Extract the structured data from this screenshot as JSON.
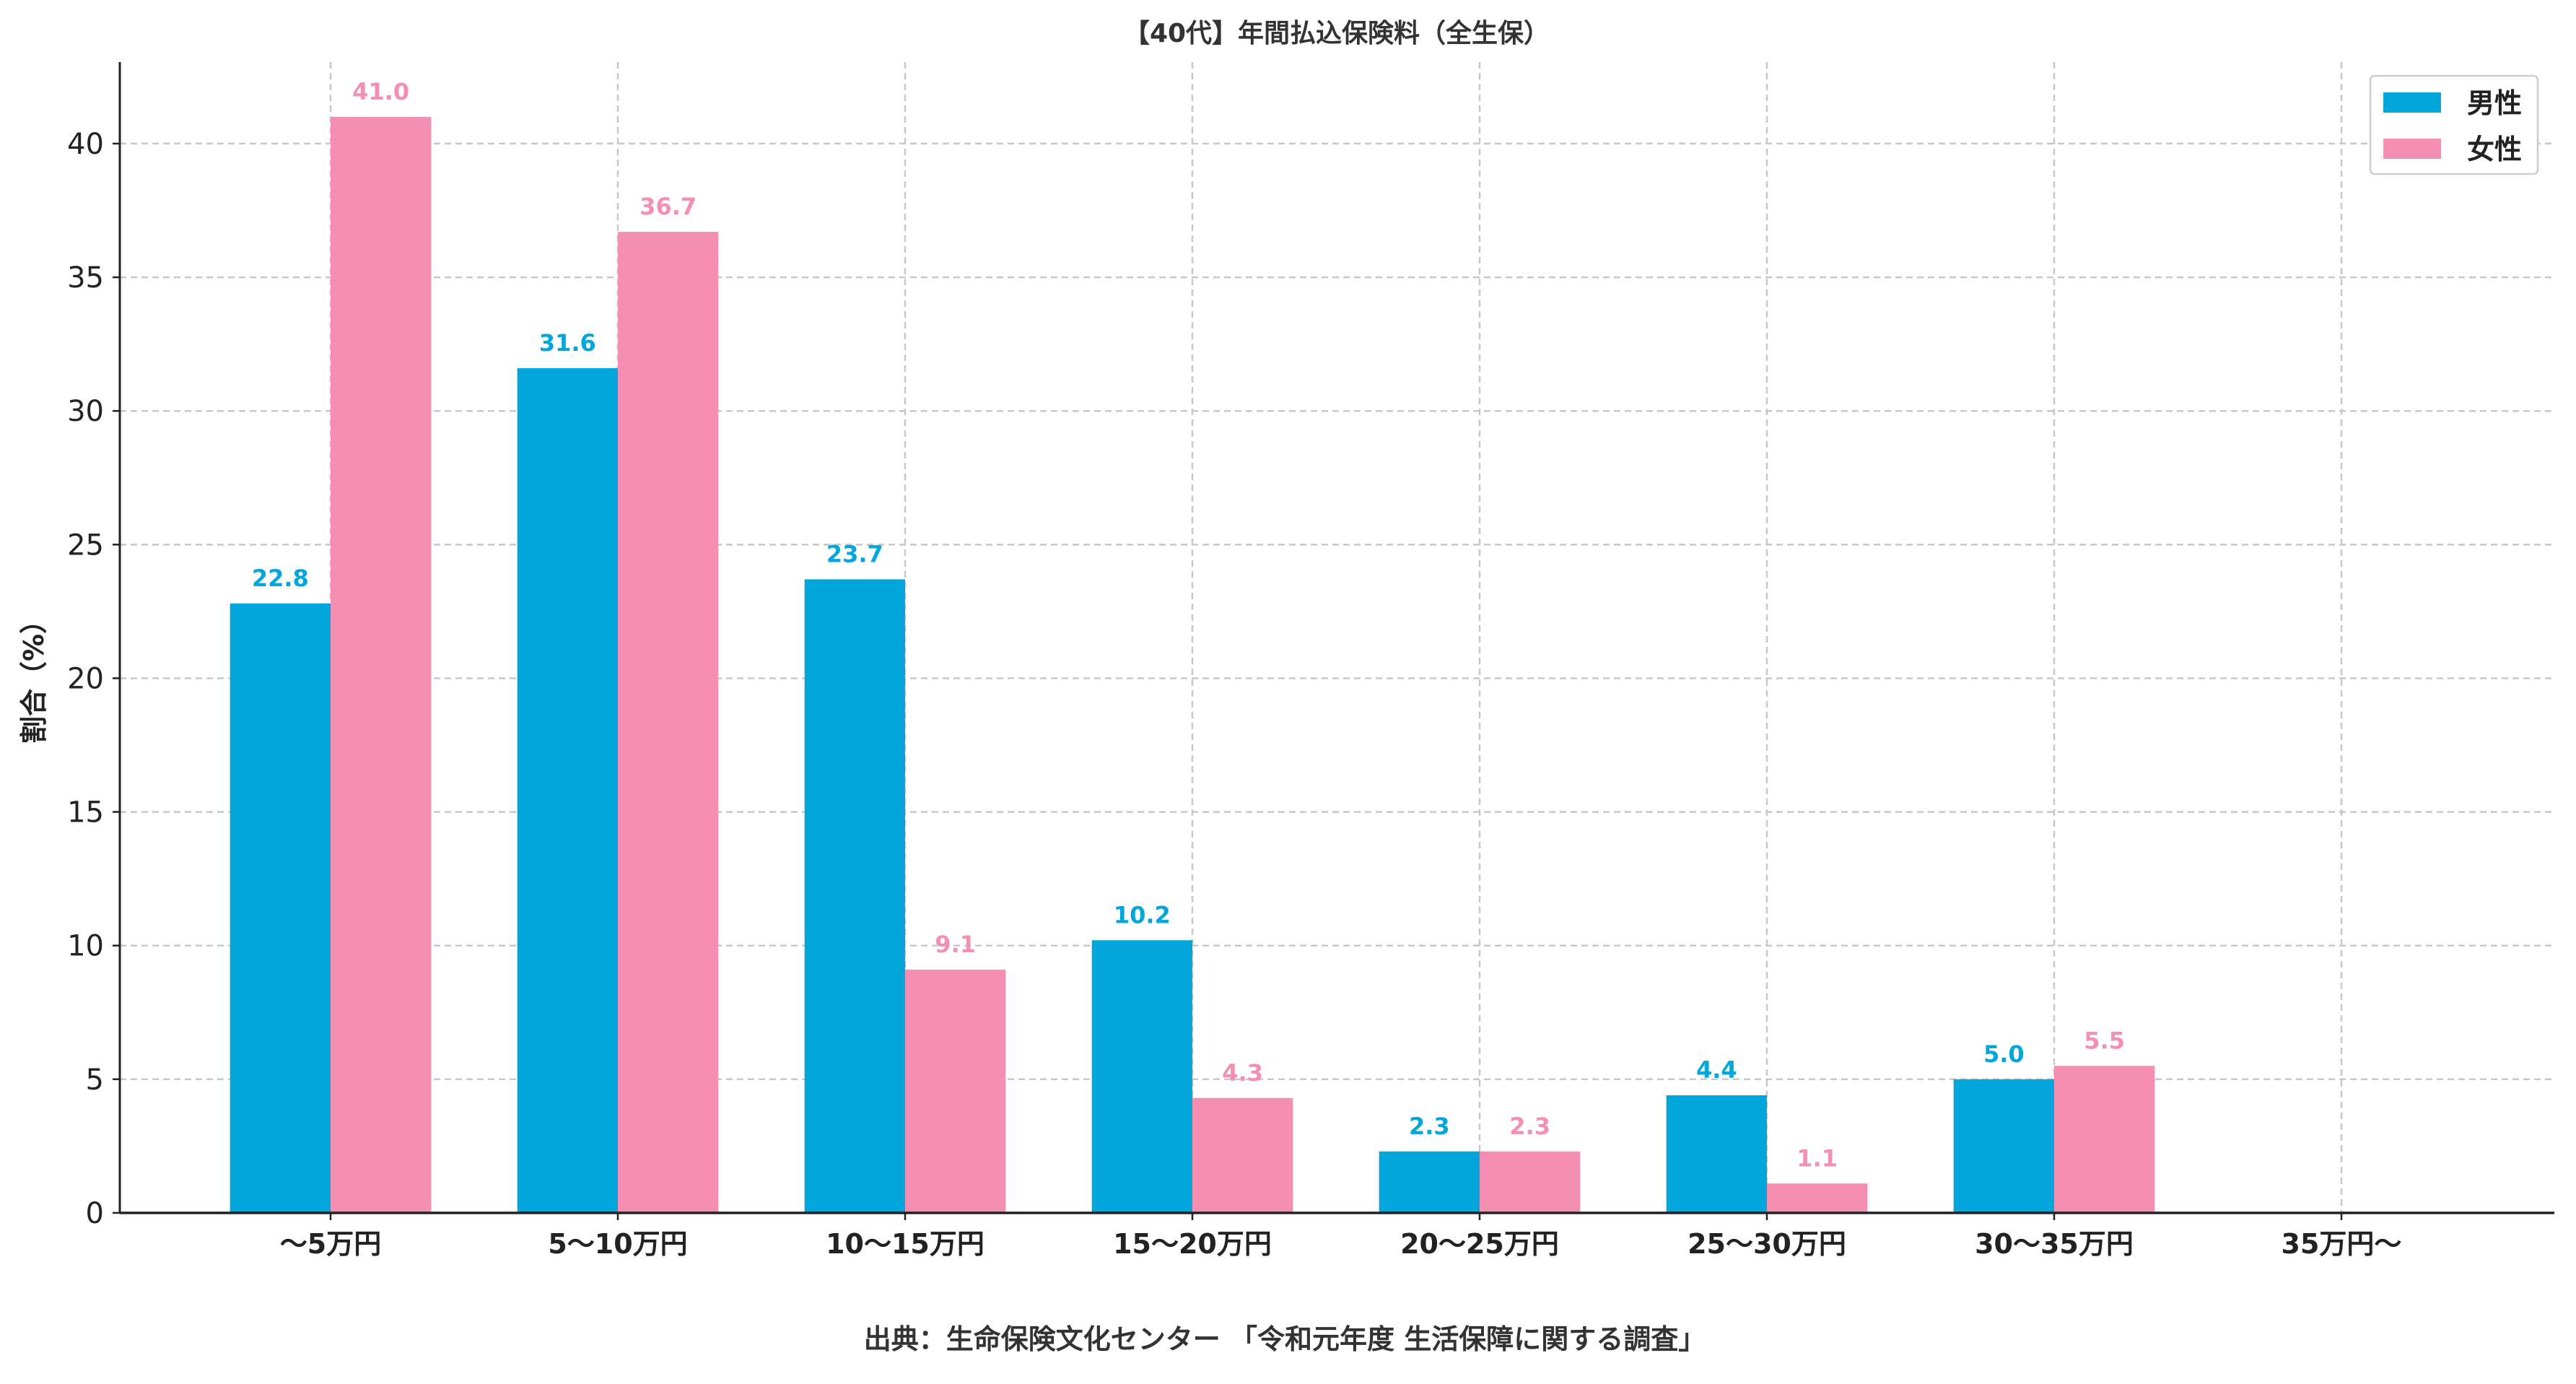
{
  "chart_data": {
    "type": "bar",
    "title": "【40代】年間払込保険料（全生保）",
    "xlabel": "",
    "ylabel": "割合（%）",
    "caption": "出典：生命保険文化センター 「令和元年度 生活保障に関する調査」",
    "categories": [
      "〜5万円",
      "5〜10万円",
      "10〜15万円",
      "15〜20万円",
      "20〜25万円",
      "25〜30万円",
      "30〜35万円",
      "35万円〜"
    ],
    "series": [
      {
        "name": "男性",
        "color": "#00A6DC",
        "values": [
          22.8,
          31.6,
          23.7,
          10.2,
          2.3,
          4.4,
          5.0,
          null
        ]
      },
      {
        "name": "女性",
        "color": "#F48FB1",
        "values": [
          41.0,
          36.7,
          9.1,
          4.3,
          2.3,
          1.1,
          5.5,
          null
        ]
      }
    ],
    "data_labels": [
      [
        "22.8",
        "31.6",
        "23.7",
        "10.2",
        "2.3",
        "4.4",
        "5.0",
        null
      ],
      [
        "41.0",
        "36.7",
        "9.1",
        "4.3",
        "2.3",
        "1.1",
        "5.5",
        null
      ]
    ],
    "yticks": [
      "0",
      "5",
      "10",
      "15",
      "20",
      "25",
      "30",
      "35",
      "40"
    ],
    "ylim": [
      0,
      43.05
    ],
    "grid": true,
    "legend": "top-right"
  }
}
